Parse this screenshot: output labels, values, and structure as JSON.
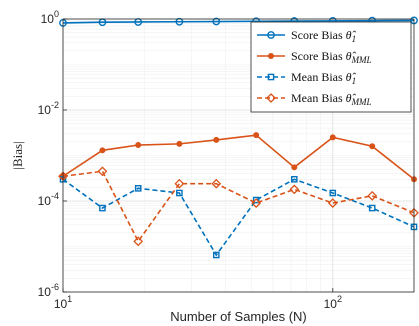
{
  "chart_data": {
    "type": "line",
    "xlabel": "Number of Samples (N)",
    "ylabel": "|Bias|",
    "xscale": "log",
    "yscale": "log",
    "xlim": [
      10,
      200
    ],
    "ylim": [
      1e-06,
      1
    ],
    "grid": true,
    "legend_position": "top-right",
    "x_ticks": [
      {
        "value": 10,
        "base": "10",
        "exp": "1"
      },
      {
        "value": 100,
        "base": "10",
        "exp": "2"
      }
    ],
    "y_ticks": [
      {
        "value": 1,
        "base": "10",
        "exp": "0"
      },
      {
        "value": 0.01,
        "base": "10",
        "exp": "-2"
      },
      {
        "value": 0.0001,
        "base": "10",
        "exp": "-4"
      },
      {
        "value": 1e-06,
        "base": "10",
        "exp": "-6"
      }
    ],
    "x": [
      10,
      14,
      19,
      27,
      37,
      52,
      72,
      100,
      140,
      200
    ],
    "series": [
      {
        "name_main": "Score Bias",
        "name_symbol": "θ̂",
        "name_sub": "1",
        "color": "#0072BD",
        "linestyle": "solid",
        "marker": "circle",
        "values": [
          0.82,
          0.85,
          0.86,
          0.87,
          0.88,
          0.89,
          0.9,
          0.91,
          0.92,
          0.93
        ]
      },
      {
        "name_main": "Score Bias",
        "name_symbol": "θ̂",
        "name_sub": "MML",
        "color": "#D95319",
        "linestyle": "solid",
        "marker": "dot",
        "values": [
          0.00035,
          0.0013,
          0.0017,
          0.0018,
          0.0022,
          0.0028,
          0.00055,
          0.0025,
          0.0016,
          0.0003
        ]
      },
      {
        "name_main": "Mean Bias",
        "name_symbol": "θ̂",
        "name_sub": "1",
        "color": "#0072BD",
        "linestyle": "dashed",
        "marker": "square",
        "values": [
          0.0003,
          7e-05,
          0.00019,
          0.00015,
          6.5e-06,
          0.000105,
          0.0003,
          0.00015,
          7e-05,
          2.7e-05
        ]
      },
      {
        "name_main": "Mean Bias",
        "name_symbol": "θ̂",
        "name_sub": "MML",
        "color": "#D95319",
        "linestyle": "dashed",
        "marker": "diamond",
        "values": [
          0.00035,
          0.00045,
          1.3e-05,
          0.00024,
          0.00024,
          9e-05,
          0.00018,
          9e-05,
          0.00013,
          5.5e-05
        ]
      }
    ]
  }
}
